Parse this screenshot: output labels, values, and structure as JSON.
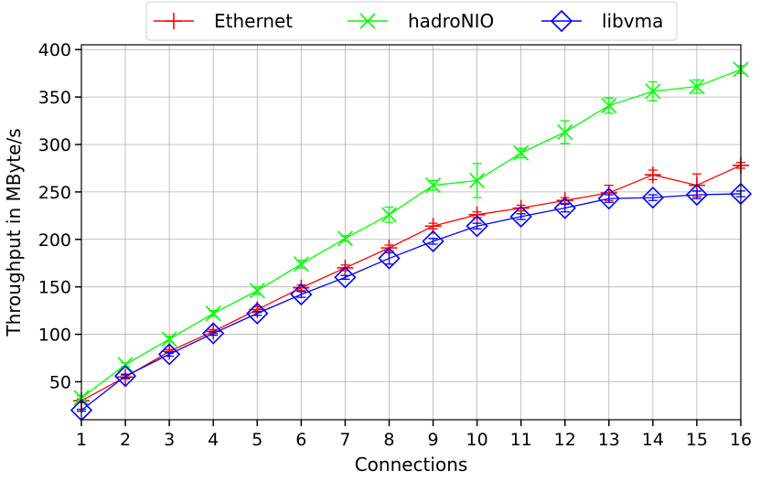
{
  "chart_data": {
    "type": "line",
    "xlabel": "Connections",
    "ylabel": "Throughput in MByte/s",
    "x": [
      1,
      2,
      3,
      4,
      5,
      6,
      7,
      8,
      9,
      10,
      11,
      12,
      13,
      14,
      15,
      16
    ],
    "xlim": [
      1,
      16
    ],
    "ylim": [
      10,
      405
    ],
    "yticks": [
      50,
      100,
      150,
      200,
      250,
      300,
      350,
      400
    ],
    "grid": true,
    "legend_position": "top-center",
    "series": [
      {
        "name": "Ethernet",
        "color": "#ff0000",
        "marker": "plus",
        "values": [
          30,
          55,
          82,
          103,
          126,
          149,
          170,
          191,
          214,
          226,
          233,
          241,
          249,
          268,
          257,
          278
        ],
        "errors": [
          2,
          2,
          2,
          2,
          3,
          3,
          3,
          3,
          3,
          3,
          3,
          3,
          8,
          5,
          12,
          3
        ]
      },
      {
        "name": "hadroNIO",
        "color": "#00ff00",
        "marker": "x",
        "values": [
          33,
          68,
          95,
          122,
          146,
          174,
          201,
          226,
          257,
          262,
          291,
          313,
          341,
          356,
          361,
          379
        ],
        "errors": [
          2,
          2,
          3,
          3,
          4,
          4,
          3,
          8,
          5,
          18,
          5,
          12,
          8,
          10,
          7,
          4
        ]
      },
      {
        "name": "libvma",
        "color": "#0000ff",
        "marker": "diamond",
        "values": [
          20,
          56,
          79,
          101,
          122,
          142,
          160,
          180,
          198,
          214,
          224,
          233,
          243,
          244,
          247,
          248
        ],
        "errors": [
          1,
          2,
          2,
          2,
          2,
          3,
          2,
          6,
          3,
          3,
          3,
          4,
          4,
          3,
          4,
          3
        ]
      }
    ]
  }
}
